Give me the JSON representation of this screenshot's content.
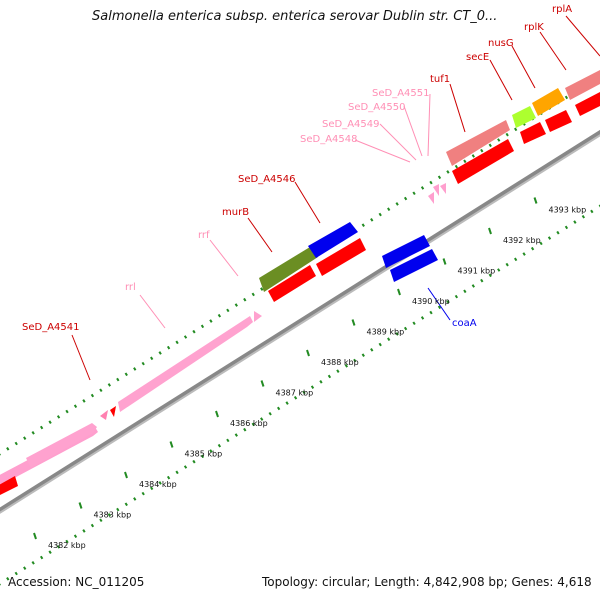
{
  "title": "Salmonella enterica subsp. enterica serovar Dublin str. CT_0...",
  "footer": {
    "accession": "Accession: NC_011205",
    "info": "Topology: circular; Length: 4,842,908 bp; Genes: 4,618"
  },
  "colors": {
    "cds": "#ff0000",
    "cds_light": "#f08080",
    "rrna": "#ffa0c8",
    "trna_label": "#ff7fb0",
    "rna_label": "#ff8fb5",
    "coa": "#0000ee",
    "murb": "#6b8e23",
    "nusg": "#adff2f",
    "secE": "#ffa500",
    "tick_green": "#228B22",
    "backbone": "#999999"
  },
  "scale_labels": [
    "4382 kbp",
    "4383 kbp",
    "4384 kbp",
    "4385 kbp",
    "4386 kbp",
    "4387 kbp",
    "4388 kbp",
    "4389 kbp",
    "4390 kbp",
    "4391 kbp",
    "4392 kbp",
    "4393 kbp"
  ],
  "gene_labels": {
    "SeD_A4541": "SeD_A4541",
    "rrl": "rrl",
    "rrf": "rrf",
    "murB": "murB",
    "SeD_A4546": "SeD_A4546",
    "SeD_A4548": "SeD_A4548",
    "SeD_A4549": "SeD_A4549",
    "SeD_A4550": "SeD_A4550",
    "SeD_A4551": "SeD_A4551",
    "tufl": "tuf1",
    "secE": "secE",
    "nusG": "nusG",
    "rplK": "rplK",
    "rplA": "rplA",
    "coaA": "coaA"
  }
}
